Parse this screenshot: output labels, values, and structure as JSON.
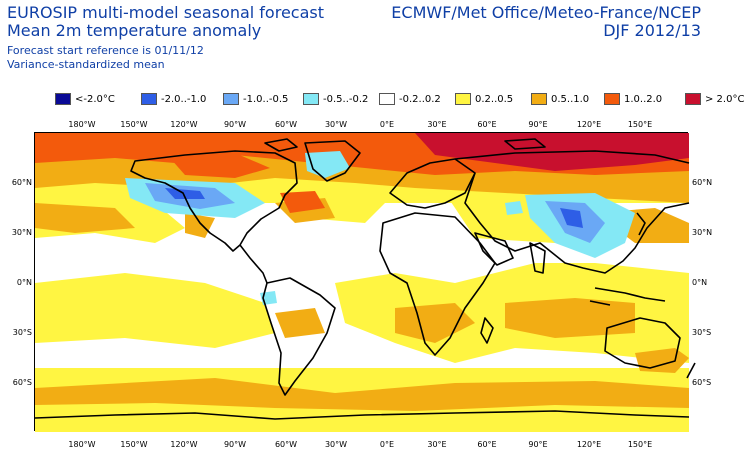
{
  "header": {
    "title_line1": "EUROSIP multi-model seasonal forecast",
    "title_line2": "Mean 2m temperature anomaly",
    "subtitle_line1": "Forecast start reference is 01/11/12",
    "subtitle_line2": "Variance-standardized mean",
    "producers": "ECMWF/Met Office/Meteo-France/NCEP",
    "period": "DJF 2012/13"
  },
  "legend": [
    {
      "label": "<-2.0°C",
      "color": "#0a0a96"
    },
    {
      "label": "-2.0..-1.0",
      "color": "#2e5ee6"
    },
    {
      "label": "-1.0..-0.5",
      "color": "#6aa8f5"
    },
    {
      "label": "-0.5..-0.2",
      "color": "#84e8f5"
    },
    {
      "label": "-0.2..0.2",
      "color": "#ffffff"
    },
    {
      "label": "0.2..0.5",
      "color": "#fff542"
    },
    {
      "label": "0.5..1.0",
      "color": "#f2ad14"
    },
    {
      "label": "1.0..2.0",
      "color": "#f35a0c"
    },
    {
      "label": "> 2.0°C",
      "color": "#c8102e"
    }
  ],
  "axes": {
    "top_lon": [
      "180°W",
      "150°W",
      "120°W",
      "90°W",
      "60°W",
      "30°W",
      "0°E",
      "30°E",
      "60°E",
      "90°E",
      "120°E",
      "150°E"
    ],
    "bottom_lon": [
      "180°W",
      "150°W",
      "120°W",
      "90°W",
      "60°W",
      "30°W",
      "0°E",
      "30°E",
      "60°E",
      "90°E",
      "120°E",
      "150°E"
    ],
    "left_lat": [
      "60°N",
      "30°N",
      "0°N",
      "30°S",
      "60°S"
    ],
    "right_lat": [
      "60°N",
      "30°N",
      "0°N",
      "30°S",
      "60°S"
    ]
  }
}
